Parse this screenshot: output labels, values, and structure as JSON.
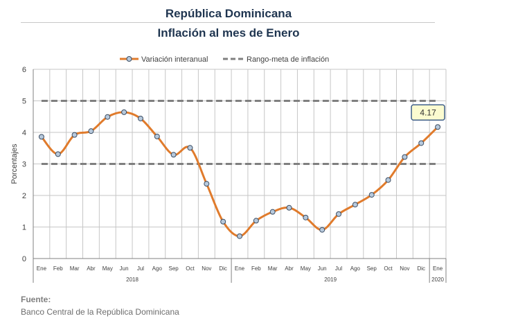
{
  "header": {
    "title": "República Dominicana",
    "subtitle": "Inflación al mes de Enero"
  },
  "footer": {
    "source_label": "Fuente:",
    "source_text": "Banco Central de la República Dominicana"
  },
  "chart_data": {
    "type": "line",
    "ylabel": "Porcentajes",
    "ylim": [
      0,
      6
    ],
    "yticks": [
      0,
      1,
      2,
      3,
      4,
      5,
      6
    ],
    "grid": true,
    "legend_position": "top",
    "categories": [
      "Ene",
      "Feb",
      "Mar",
      "Abr",
      "May",
      "Jun",
      "Jul",
      "Ago",
      "Sep",
      "Oct",
      "Nov",
      "Dic",
      "Ene",
      "Feb",
      "Mar",
      "Abr",
      "May",
      "Jun",
      "Jul",
      "Ago",
      "Sep",
      "Oct",
      "Nov",
      "Dic",
      "Ene"
    ],
    "year_groups": [
      {
        "label": "2018",
        "start": 0,
        "end": 11
      },
      {
        "label": "2019",
        "start": 12,
        "end": 23
      },
      {
        "label": "2020",
        "start": 24,
        "end": 24
      }
    ],
    "series": [
      {
        "name": "Variación interanual",
        "style": "line",
        "color": "#e07b2c",
        "marker_fill": "#b7c9dc",
        "values": [
          3.86,
          3.31,
          3.92,
          4.04,
          4.49,
          4.64,
          4.44,
          3.87,
          3.29,
          3.51,
          2.37,
          1.17,
          0.71,
          1.2,
          1.48,
          1.61,
          1.3,
          0.91,
          1.41,
          1.71,
          2.02,
          2.49,
          3.22,
          3.66,
          4.17
        ]
      },
      {
        "name": "Rango-meta de inflación",
        "style": "dashed",
        "color": "#7f7f7f",
        "lower": 3,
        "upper": 5
      }
    ],
    "annotation": {
      "index": 24,
      "text": "4.17",
      "fill": "#fbfbd0",
      "border": "#3f5f88"
    }
  }
}
